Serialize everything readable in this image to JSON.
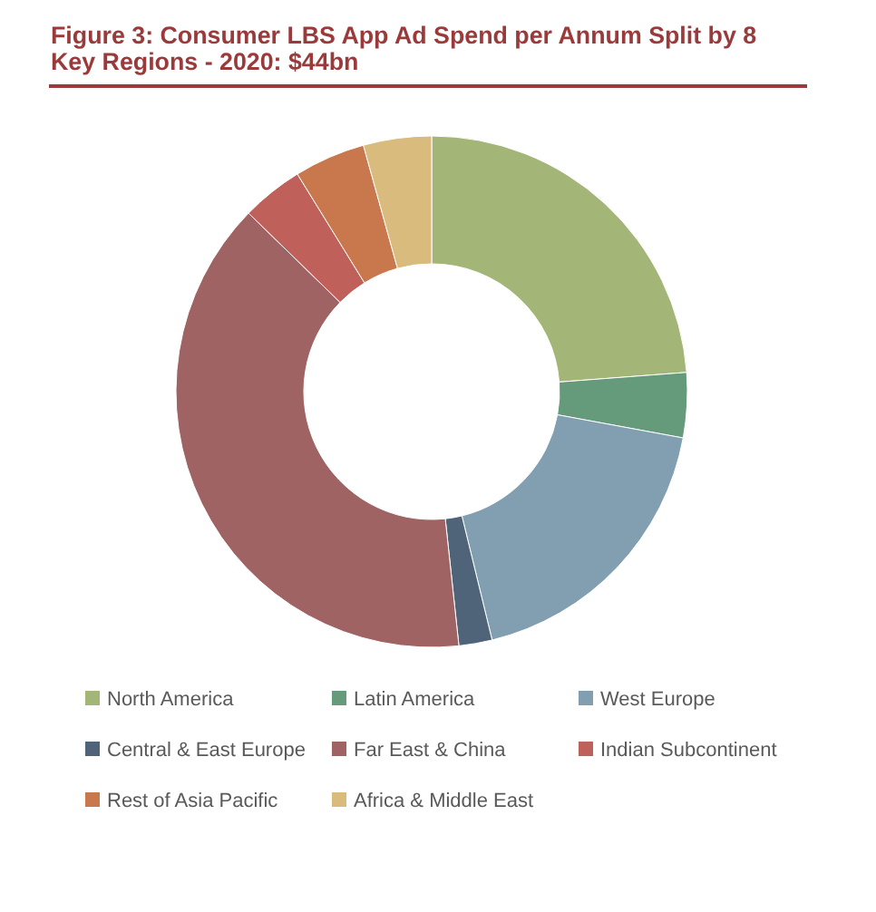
{
  "chart_data": {
    "type": "donut",
    "title": "Figure 3: Consumer LBS App Ad Spend per Annum Split by 8 Key Regions - 2020: $44bn",
    "categories": [
      "North America",
      "Latin America",
      "West Europe",
      "Central & East Europe",
      "Far East & China",
      "Indian Subcontinent",
      "Rest of Asia Pacific",
      "Africa & Middle East"
    ],
    "values": [
      23.8,
      4.1,
      18.3,
      2.1,
      39.0,
      3.9,
      4.5,
      4.3
    ],
    "colors": [
      "#a3b577",
      "#659a7a",
      "#819fb0",
      "#4f6478",
      "#a06363",
      "#c0605a",
      "#c8784c",
      "#d8bb7d"
    ],
    "legend": "bottom"
  }
}
